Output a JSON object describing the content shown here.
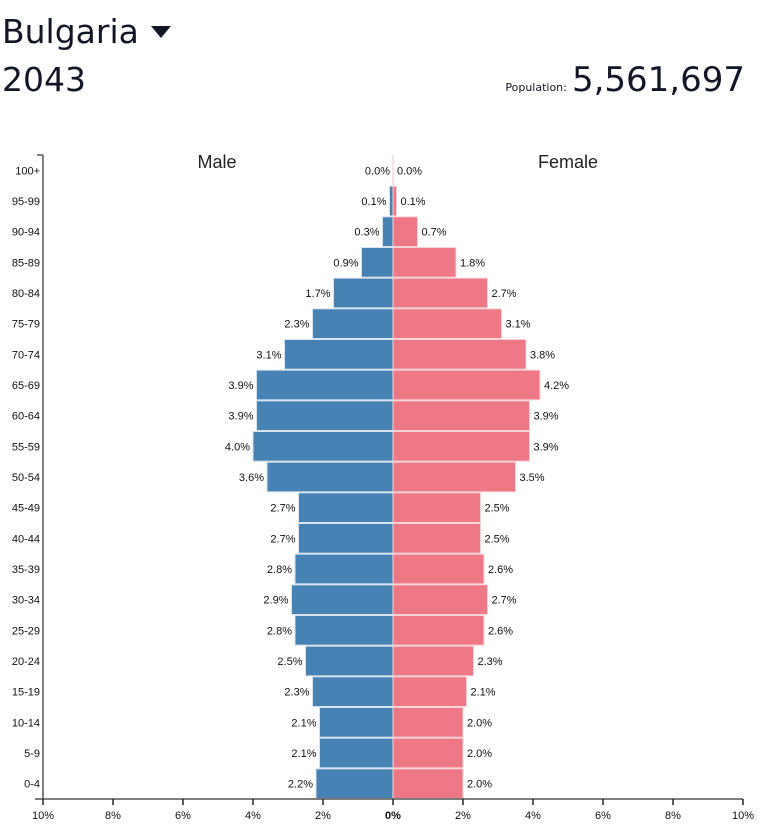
{
  "header": {
    "country": "Bulgaria",
    "year": "2043",
    "population_label": "Population:",
    "population_value": "5,561,697"
  },
  "colors": {
    "male": "#4682B4",
    "female": "#EF7887"
  },
  "chart_data": {
    "type": "bar",
    "subtype": "population-pyramid",
    "title": "Bulgaria 2043",
    "categories": [
      "100+",
      "95-99",
      "90-94",
      "85-89",
      "80-84",
      "75-79",
      "70-74",
      "65-69",
      "60-64",
      "55-59",
      "50-54",
      "45-49",
      "40-44",
      "35-39",
      "30-34",
      "25-29",
      "20-24",
      "15-19",
      "10-14",
      "5-9",
      "0-4"
    ],
    "series": [
      {
        "name": "Male",
        "values": [
          0.0,
          0.1,
          0.3,
          0.9,
          1.7,
          2.3,
          3.1,
          3.9,
          3.9,
          4.0,
          3.6,
          2.7,
          2.7,
          2.8,
          2.9,
          2.8,
          2.5,
          2.3,
          2.1,
          2.1,
          2.2
        ],
        "labels": [
          "0.0%",
          "0.1%",
          "0.3%",
          "0.9%",
          "1.7%",
          "2.3%",
          "3.1%",
          "3.9%",
          "3.9%",
          "4.0%",
          "3.6%",
          "2.7%",
          "2.7%",
          "2.8%",
          "2.9%",
          "2.8%",
          "2.5%",
          "2.3%",
          "2.1%",
          "2.1%",
          "2.2%"
        ]
      },
      {
        "name": "Female",
        "values": [
          0.0,
          0.1,
          0.7,
          1.8,
          2.7,
          3.1,
          3.8,
          4.2,
          3.9,
          3.9,
          3.5,
          2.5,
          2.5,
          2.6,
          2.7,
          2.6,
          2.3,
          2.1,
          2.0,
          2.0,
          2.0
        ],
        "labels": [
          "0.0%",
          "0.1%",
          "0.7%",
          "1.8%",
          "2.7%",
          "3.1%",
          "3.8%",
          "4.2%",
          "3.9%",
          "3.9%",
          "3.5%",
          "2.5%",
          "2.5%",
          "2.6%",
          "2.7%",
          "2.6%",
          "2.3%",
          "2.1%",
          "2.0%",
          "2.0%",
          "2.0%"
        ]
      }
    ],
    "xlim": [
      -10,
      10
    ],
    "xticks": [
      -10,
      -8,
      -6,
      -4,
      -2,
      0,
      2,
      4,
      6,
      8,
      10
    ],
    "xtick_labels": [
      "10%",
      "8%",
      "6%",
      "4%",
      "2%",
      "0%",
      "2%",
      "4%",
      "6%",
      "8%",
      "10%"
    ],
    "xlabel": "",
    "ylabel": "",
    "legend": [
      "Male",
      "Female"
    ],
    "legend_position": "top"
  }
}
